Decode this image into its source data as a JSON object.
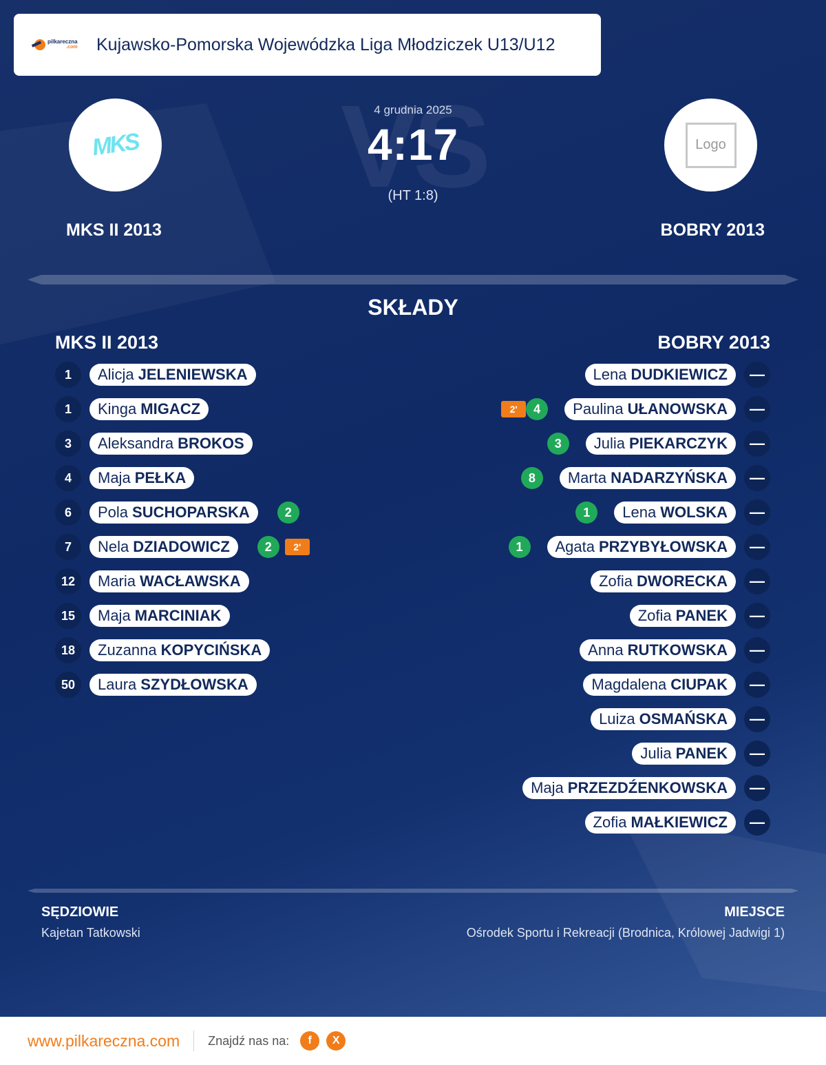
{
  "header": {
    "league": "Kujawsko-Pomorska Wojewódzka Liga Młodziczek U13/U12",
    "brand_main": "pilkareczna",
    "brand_sub": ".com"
  },
  "match": {
    "date": "4 grudnia 2025",
    "score": "4:17",
    "halftime": "(HT 1:8)",
    "watermark": "VS",
    "home_team": "MKS II 2013",
    "away_team": "BOBRY 2013",
    "home_logo_text": "MKS",
    "away_logo_text": "Logo"
  },
  "squads": {
    "title": "SKŁADY",
    "home_team": "MKS II 2013",
    "away_team": "BOBRY 2013",
    "home": [
      {
        "number": "1",
        "first": "Alicja",
        "last": "JELENIEWSKA",
        "goals": "",
        "suspension": ""
      },
      {
        "number": "1",
        "first": "Kinga",
        "last": "MIGACZ",
        "goals": "",
        "suspension": ""
      },
      {
        "number": "3",
        "first": "Aleksandra",
        "last": "BROKOS",
        "goals": "",
        "suspension": ""
      },
      {
        "number": "4",
        "first": "Maja",
        "last": "PEŁKA",
        "goals": "",
        "suspension": ""
      },
      {
        "number": "6",
        "first": "Pola",
        "last": "SUCHOPARSKA",
        "goals": "2",
        "suspension": ""
      },
      {
        "number": "7",
        "first": "Nela",
        "last": "DZIADOWICZ",
        "goals": "2",
        "suspension": "2'"
      },
      {
        "number": "12",
        "first": "Maria",
        "last": "WACŁAWSKA",
        "goals": "",
        "suspension": ""
      },
      {
        "number": "15",
        "first": "Maja",
        "last": "MARCINIAK",
        "goals": "",
        "suspension": ""
      },
      {
        "number": "18",
        "first": "Zuzanna",
        "last": "KOPYCIŃSKA",
        "goals": "",
        "suspension": ""
      },
      {
        "number": "50",
        "first": "Laura",
        "last": "SZYDŁOWSKA",
        "goals": "",
        "suspension": ""
      }
    ],
    "away": [
      {
        "number": "—",
        "first": "Lena",
        "last": "DUDKIEWICZ",
        "goals": "",
        "suspension": ""
      },
      {
        "number": "—",
        "first": "Paulina",
        "last": "UŁANOWSKA",
        "goals": "4",
        "suspension": "2'"
      },
      {
        "number": "—",
        "first": "Julia",
        "last": "PIEKARCZYK",
        "goals": "3",
        "suspension": ""
      },
      {
        "number": "—",
        "first": "Marta",
        "last": "NADARZYŃSKA",
        "goals": "8",
        "suspension": ""
      },
      {
        "number": "—",
        "first": "Lena",
        "last": "WOLSKA",
        "goals": "1",
        "suspension": ""
      },
      {
        "number": "—",
        "first": "Agata",
        "last": "PRZYBYŁOWSKA",
        "goals": "1",
        "suspension": ""
      },
      {
        "number": "—",
        "first": "Zofia",
        "last": "DWORECKA",
        "goals": "",
        "suspension": ""
      },
      {
        "number": "—",
        "first": "Zofia",
        "last": "PANEK",
        "goals": "",
        "suspension": ""
      },
      {
        "number": "—",
        "first": "Anna",
        "last": "RUTKOWSKA",
        "goals": "",
        "suspension": ""
      },
      {
        "number": "—",
        "first": "Magdalena",
        "last": "CIUPAK",
        "goals": "",
        "suspension": ""
      },
      {
        "number": "—",
        "first": "Luiza",
        "last": "OSMAŃSKA",
        "goals": "",
        "suspension": ""
      },
      {
        "number": "—",
        "first": "Julia",
        "last": "PANEK",
        "goals": "",
        "suspension": ""
      },
      {
        "number": "—",
        "first": "Maja",
        "last": "PRZEZDŹENKOWSKA",
        "goals": "",
        "suspension": ""
      },
      {
        "number": "—",
        "first": "Zofia",
        "last": "MAŁKIEWICZ",
        "goals": "",
        "suspension": ""
      }
    ]
  },
  "info": {
    "referees_label": "SĘDZIOWIE",
    "referees": "Kajetan Tatkowski",
    "venue_label": "MIEJSCE",
    "venue": "Ośrodek Sportu i Rekreacji (Brodnica, Królowej Jadwigi 1)"
  },
  "footer": {
    "site": "www.pilkareczna.com",
    "find_us": "Znajdź nas na:",
    "social": [
      "f",
      "X"
    ]
  },
  "colors": {
    "accent": "#f07d1a",
    "goal": "#21a95a",
    "navy": "#0d2456"
  }
}
